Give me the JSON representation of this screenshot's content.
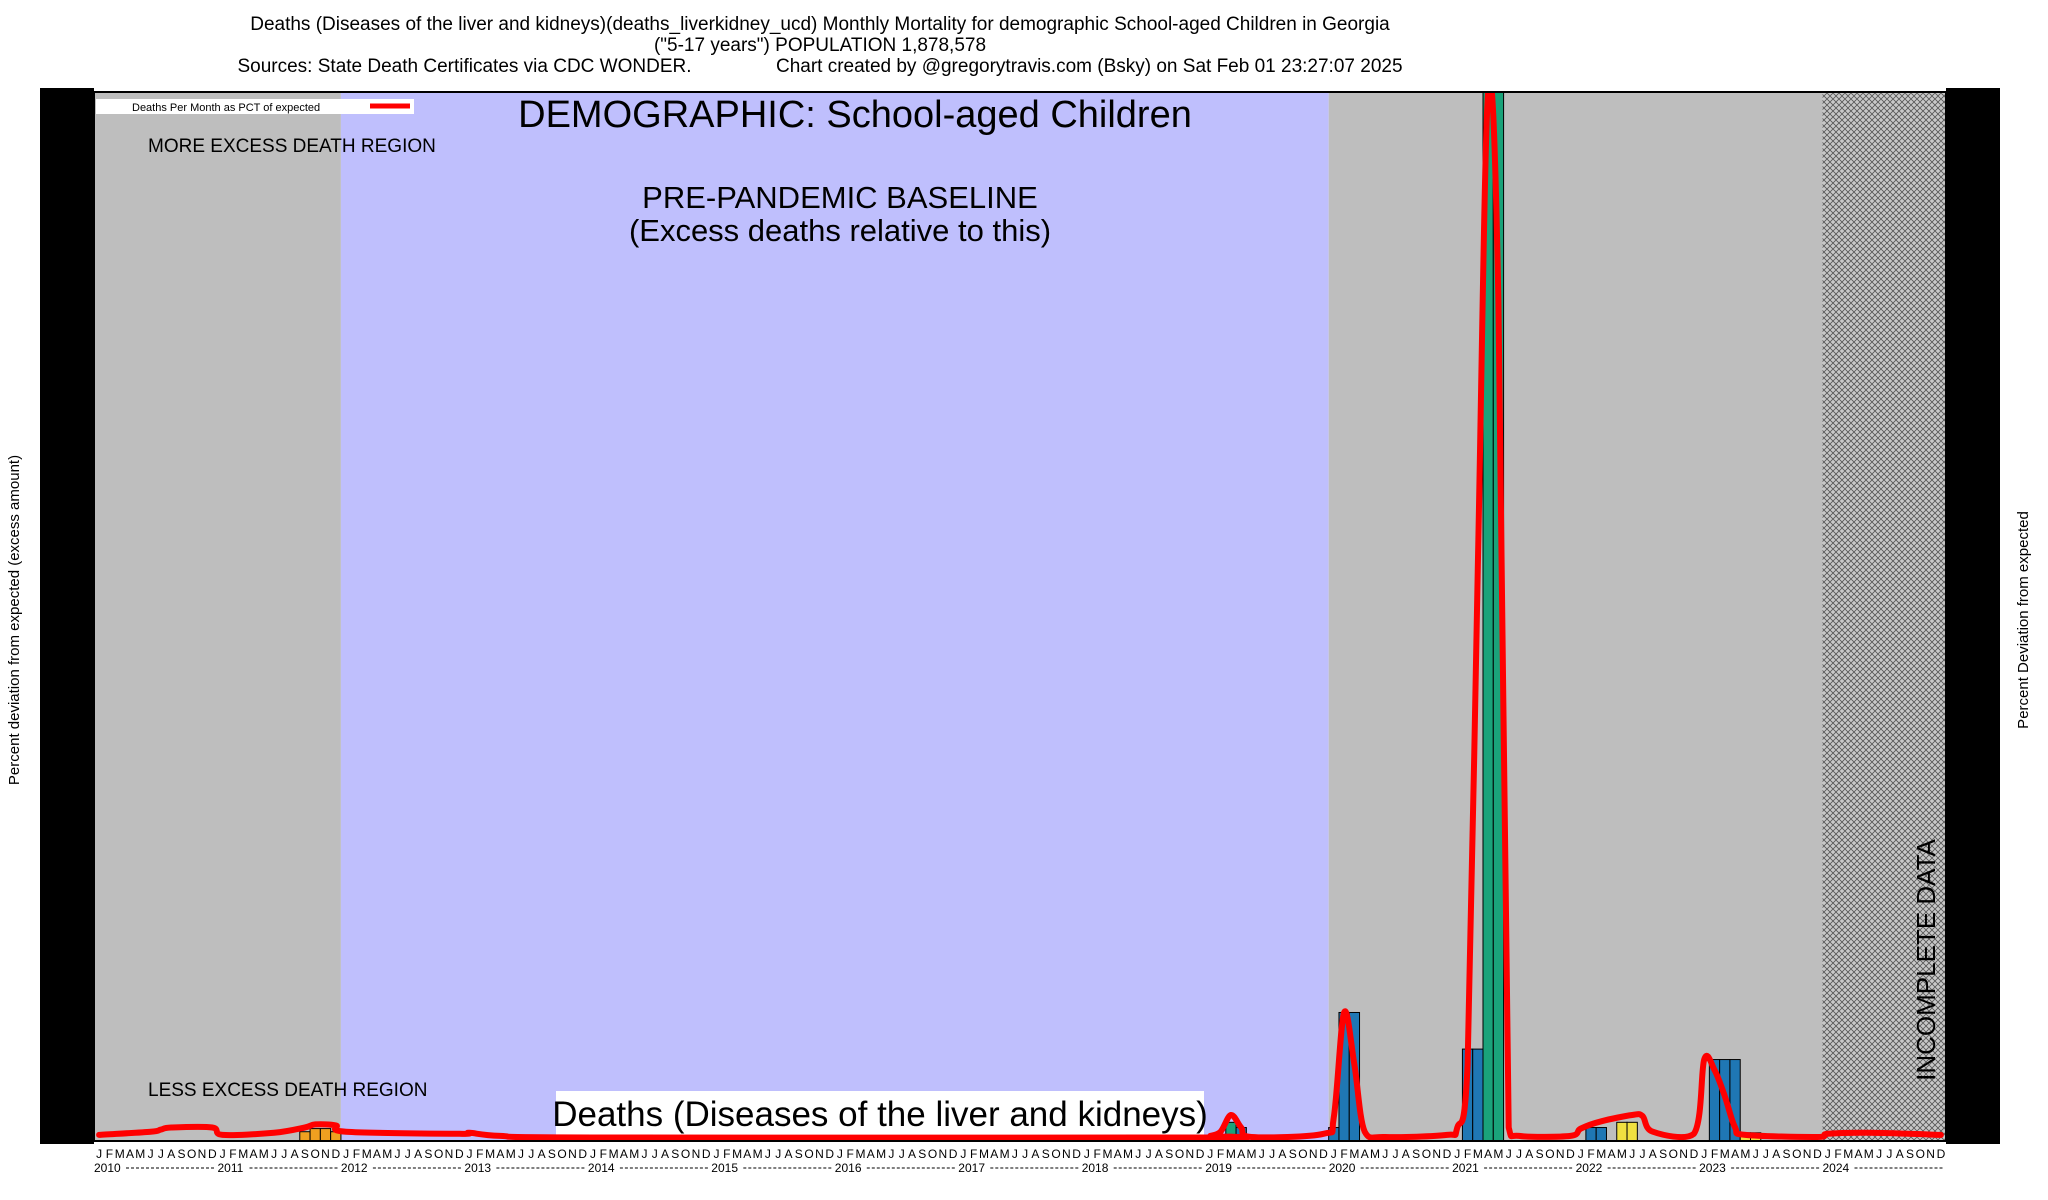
{
  "title": {
    "line1": "Deaths (Diseases of the liver and kidneys)(deaths_liverkidney_ucd) Monthly Mortality for demographic School-aged Children in Georgia",
    "line2": "(\"5-17 years\") POPULATION 1,878,578",
    "line3": "Sources: State Death Certificates via CDC WONDER.                Chart created by @gregorytravis.com (Bsky) on Sat Feb 01 23:27:07 2025"
  },
  "chart_data": {
    "type": "bar",
    "title": "DEMOGRAPHIC: School-aged Children",
    "cause_label": "Deaths (Diseases of the liver and kidneys)",
    "ylabel_left": "Percent deviation from expected (excess amount)",
    "ylabel_right": "Percent Deviation from expected",
    "legend": {
      "line_label": "Deaths Per Month as PCT of expected",
      "placement": "top-left"
    },
    "annotations": {
      "more_excess": "MORE EXCESS DEATH REGION",
      "less_excess": "LESS EXCESS DEATH REGION",
      "baseline_line1": "PRE-PANDEMIC BASELINE",
      "baseline_line2": "(Excess deaths relative to this)",
      "incomplete": "INCOMPLETE DATA"
    },
    "month_letters": [
      "J",
      "F",
      "M",
      "A",
      "M",
      "J",
      "J",
      "A",
      "S",
      "O",
      "N",
      "D"
    ],
    "years": [
      "2010",
      "2011",
      "2012",
      "2013",
      "2014",
      "2015",
      "2016",
      "2017",
      "2018",
      "2019",
      "2020",
      "2021",
      "2022",
      "2023",
      "2024"
    ],
    "start": "2010-01",
    "baseline_period": [
      "2012-01",
      "2019-12"
    ],
    "incomplete_period": [
      "2024-01",
      "2024-12"
    ],
    "ylim": [
      0,
      100
    ],
    "y_unit": "relative excess (axis tick labels not legible)",
    "colors": {
      "gray_region": "#bebebe",
      "baseline_region": "#bfbffd",
      "line": "#ff0000",
      "bar_blue": "#1f77b4",
      "bar_green": "#1aa37a",
      "bar_yellow": "#f0e040",
      "bar_orange": "#f0a020"
    },
    "bars": [
      {
        "month": "2011-09",
        "value": 0.6,
        "color": "bar_orange"
      },
      {
        "month": "2011-10",
        "value": 0.9,
        "color": "bar_orange"
      },
      {
        "month": "2011-11",
        "value": 0.9,
        "color": "bar_orange"
      },
      {
        "month": "2011-12",
        "value": 0.6,
        "color": "bar_orange"
      },
      {
        "month": "2019-03",
        "value": 1.5,
        "color": "bar_green"
      },
      {
        "month": "2019-04",
        "value": 1.0,
        "color": "bar_blue"
      },
      {
        "month": "2020-01",
        "value": 1.0,
        "color": "bar_blue"
      },
      {
        "month": "2020-02",
        "value": 12.0,
        "color": "bar_blue"
      },
      {
        "month": "2020-03",
        "value": 12.0,
        "color": "bar_blue"
      },
      {
        "month": "2021-02",
        "value": 8.5,
        "color": "bar_blue"
      },
      {
        "month": "2021-03",
        "value": 8.5,
        "color": "bar_blue"
      },
      {
        "month": "2021-04",
        "value": 100,
        "color": "bar_green"
      },
      {
        "month": "2021-05",
        "value": 100,
        "color": "bar_green"
      },
      {
        "month": "2022-02",
        "value": 1.0,
        "color": "bar_blue"
      },
      {
        "month": "2022-03",
        "value": 1.0,
        "color": "bar_blue"
      },
      {
        "month": "2022-05",
        "value": 1.5,
        "color": "bar_yellow"
      },
      {
        "month": "2022-06",
        "value": 1.5,
        "color": "bar_yellow"
      },
      {
        "month": "2023-02",
        "value": 7.5,
        "color": "bar_blue"
      },
      {
        "month": "2023-03",
        "value": 7.5,
        "color": "bar_blue"
      },
      {
        "month": "2023-04",
        "value": 7.5,
        "color": "bar_blue"
      },
      {
        "month": "2023-05",
        "value": 0.5,
        "color": "bar_yellow"
      },
      {
        "month": "2023-06",
        "value": 0.5,
        "color": "bar_yellow"
      }
    ],
    "line": [
      {
        "month": "2010-01",
        "value": 0.3
      },
      {
        "month": "2010-06",
        "value": 0.6
      },
      {
        "month": "2010-07",
        "value": 0.8
      },
      {
        "month": "2010-08",
        "value": 1.0
      },
      {
        "month": "2010-12",
        "value": 1.0
      },
      {
        "month": "2011-01",
        "value": 0.3
      },
      {
        "month": "2011-06",
        "value": 0.5
      },
      {
        "month": "2011-09",
        "value": 1.0
      },
      {
        "month": "2011-10",
        "value": 1.3
      },
      {
        "month": "2011-12",
        "value": 1.2
      },
      {
        "month": "2012-01",
        "value": 0.6
      },
      {
        "month": "2012-12",
        "value": 0.4
      },
      {
        "month": "2013-01",
        "value": 0.5
      },
      {
        "month": "2013-04",
        "value": 0.2
      },
      {
        "month": "2014-01",
        "value": 0.05
      },
      {
        "month": "2018-12",
        "value": 0.05
      },
      {
        "month": "2019-01",
        "value": 0.2
      },
      {
        "month": "2019-02",
        "value": 0.6
      },
      {
        "month": "2019-03",
        "value": 2.2
      },
      {
        "month": "2019-04",
        "value": 1.0
      },
      {
        "month": "2019-05",
        "value": 0.1
      },
      {
        "month": "2019-12",
        "value": 0.4
      },
      {
        "month": "2020-01",
        "value": 2.0
      },
      {
        "month": "2020-02",
        "value": 12.0
      },
      {
        "month": "2020-03",
        "value": 7.0
      },
      {
        "month": "2020-04",
        "value": 0.6
      },
      {
        "month": "2020-06",
        "value": 0.1
      },
      {
        "month": "2020-12",
        "value": 0.3
      },
      {
        "month": "2021-01",
        "value": 1.0
      },
      {
        "month": "2021-02",
        "value": 7.0
      },
      {
        "month": "2021-03",
        "value": 55.0
      },
      {
        "month": "2021-04",
        "value": 100
      },
      {
        "month": "2021-05",
        "value": 80.0
      },
      {
        "month": "2021-06",
        "value": 1.0
      },
      {
        "month": "2021-07",
        "value": 0.2
      },
      {
        "month": "2021-12",
        "value": 0.2
      },
      {
        "month": "2022-01",
        "value": 0.9
      },
      {
        "month": "2022-03",
        "value": 1.6
      },
      {
        "month": "2022-06",
        "value": 2.2
      },
      {
        "month": "2022-07",
        "value": 2.1
      },
      {
        "month": "2022-08",
        "value": 0.6
      },
      {
        "month": "2022-12",
        "value": 0.4
      },
      {
        "month": "2023-01",
        "value": 7.5
      },
      {
        "month": "2023-02",
        "value": 6.5
      },
      {
        "month": "2023-03",
        "value": 4.0
      },
      {
        "month": "2023-04",
        "value": 1.0
      },
      {
        "month": "2023-05",
        "value": 0.3
      },
      {
        "month": "2023-12",
        "value": 0.1
      },
      {
        "month": "2024-01",
        "value": 0.4
      },
      {
        "month": "2024-05",
        "value": 0.5
      },
      {
        "month": "2024-12",
        "value": 0.3
      }
    ]
  }
}
